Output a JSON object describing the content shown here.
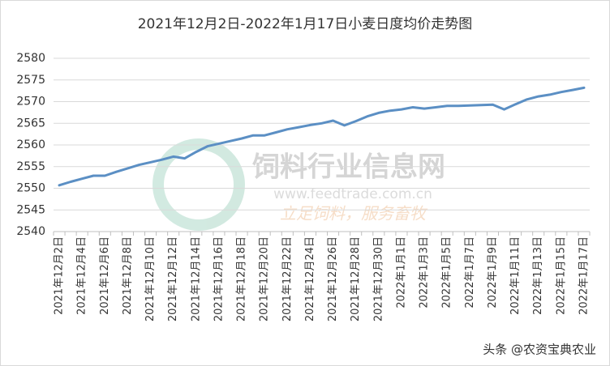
{
  "chart_data": {
    "type": "line",
    "title": "2021年12月2日-2022年1月17日小麦日度均价走势图",
    "categories": [
      "2021年12月2日",
      null,
      "2021年12月4日",
      null,
      "2021年12月6日",
      null,
      "2021年12月8日",
      null,
      "2021年12月10日",
      null,
      "2021年12月12日",
      null,
      "2021年12月14日",
      null,
      "2021年12月16日",
      null,
      "2021年12月18日",
      null,
      "2021年12月20日",
      null,
      "2021年12月22日",
      null,
      "2021年12月24日",
      null,
      "2021年12月26日",
      null,
      "2021年12月28日",
      null,
      "2021年12月30日",
      null,
      "2022年1月1日",
      null,
      "2022年1月3日",
      null,
      "2022年1月5日",
      null,
      "2022年1月7日",
      null,
      "2022年1月9日",
      null,
      "2022年1月11日",
      null,
      "2022年1月13日",
      null,
      "2022年1月15日",
      null,
      "2022年1月17日"
    ],
    "values": [
      2550.7,
      2551.5,
      2552.2,
      2552.9,
      2552.9,
      2553.8,
      2554.6,
      2555.4,
      2556.0,
      2556.6,
      2557.3,
      2556.9,
      2558.4,
      2559.7,
      2560.3,
      2560.9,
      2561.5,
      2562.2,
      2562.2,
      2562.9,
      2563.6,
      2564.1,
      2564.6,
      2565.0,
      2565.6,
      2564.5,
      2565.5,
      2566.6,
      2567.4,
      2567.9,
      2568.2,
      2568.7,
      2568.4,
      2568.7,
      2569.0,
      2569.0,
      2569.1,
      2569.2,
      2569.3,
      2568.2,
      2569.4,
      2570.5,
      2571.2,
      2571.6,
      2572.2,
      2572.7,
      2573.2
    ],
    "color": "#5b8fc4",
    "ylim": [
      2540,
      2580
    ],
    "yticks": [
      2540,
      2545,
      2550,
      2555,
      2560,
      2565,
      2570,
      2575,
      2580
    ],
    "grid": true,
    "watermark": [
      "饲料行业信息网",
      "www.feedtrade.com.cn",
      "立足饲料，服务畜牧"
    ],
    "footer": "头条 @农资宝典农业"
  }
}
